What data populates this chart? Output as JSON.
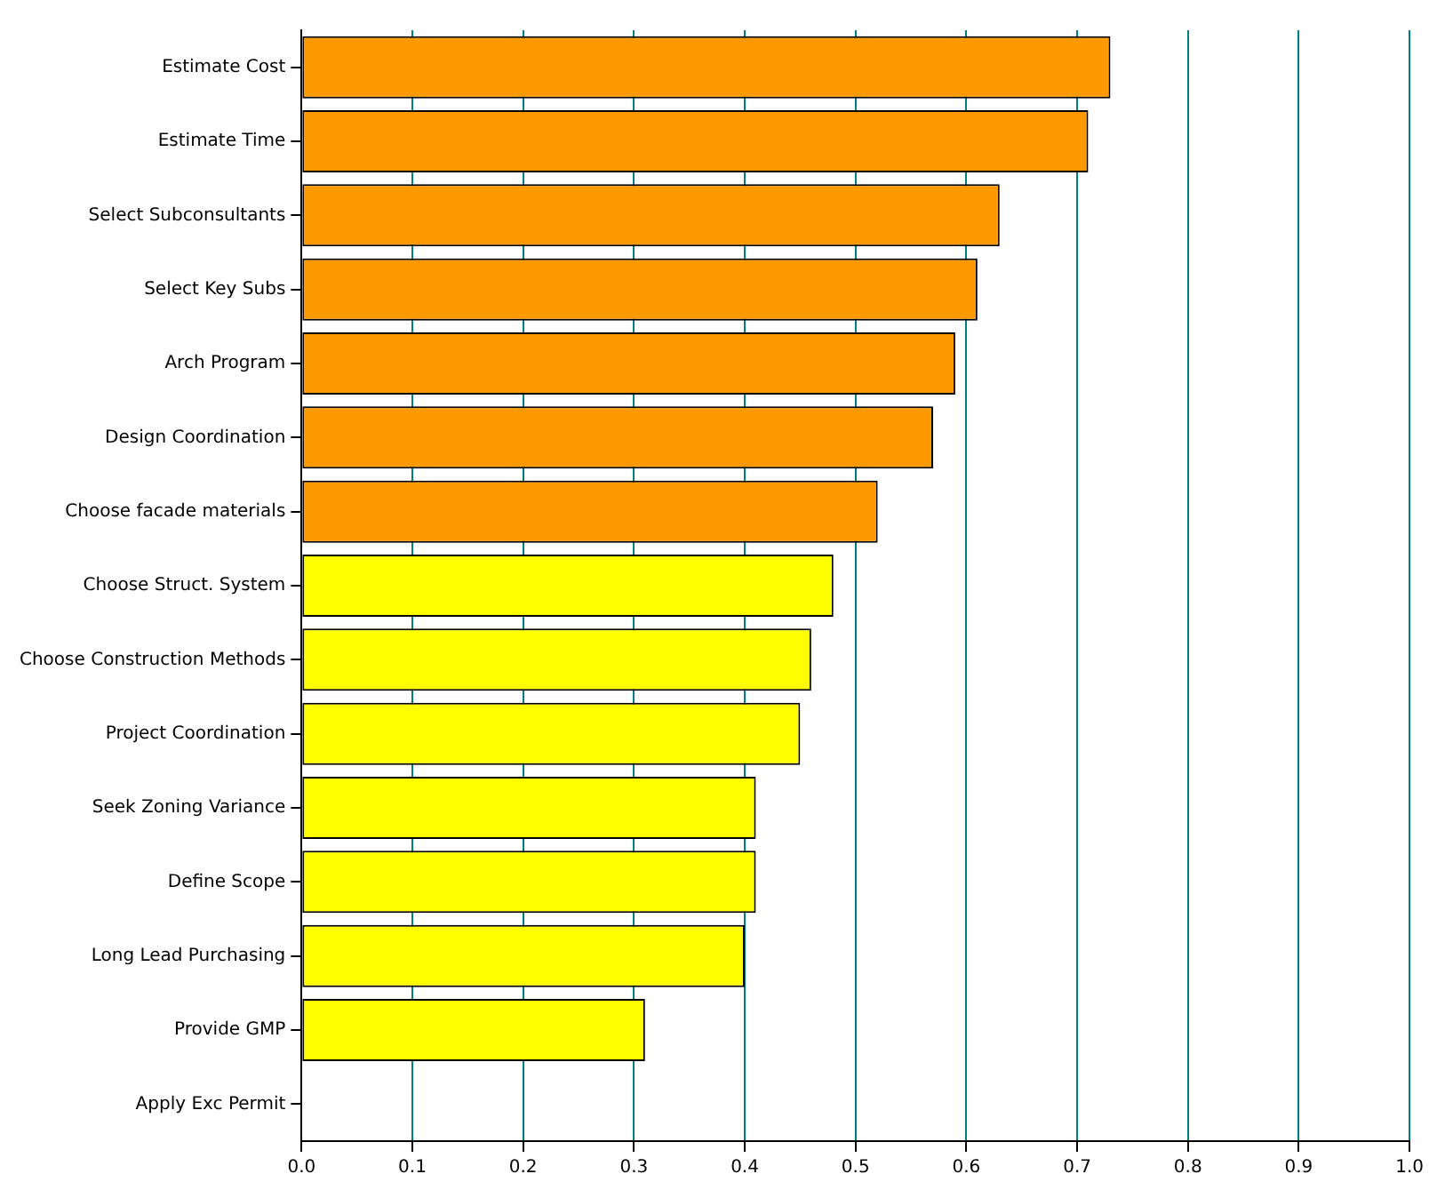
{
  "chart_data": {
    "type": "bar",
    "orientation": "horizontal",
    "categories": [
      "Estimate Cost",
      "Estimate Time",
      "Select Subconsultants",
      "Select Key Subs",
      "Arch Program",
      "Design Coordination",
      "Choose facade materials",
      "Choose Struct. System",
      "Choose Construction Methods",
      "Project Coordination",
      "Seek Zoning Variance",
      "Define Scope",
      "Long Lead Purchasing",
      "Provide GMP",
      "Apply Exc Permit"
    ],
    "values": [
      0.73,
      0.71,
      0.63,
      0.61,
      0.59,
      0.57,
      0.52,
      0.48,
      0.46,
      0.45,
      0.41,
      0.41,
      0.4,
      0.31,
      0
    ],
    "colors": [
      "#ff9900",
      "#ff9900",
      "#ff9900",
      "#ff9900",
      "#ff9900",
      "#ff9900",
      "#ff9900",
      "#ffff00",
      "#ffff00",
      "#ffff00",
      "#ffff00",
      "#ffff00",
      "#ffff00",
      "#ffff00",
      "#ffff00"
    ],
    "xlim": [
      0,
      1
    ],
    "xticks": [
      {
        "value": 0,
        "label": "0.0"
      },
      0.1,
      0.2,
      0.3,
      0.4,
      0.5,
      0.6,
      0.7,
      0.8,
      0.9,
      {
        "value": 1,
        "label": "1.0"
      }
    ],
    "grid": "x",
    "legend": false
  }
}
